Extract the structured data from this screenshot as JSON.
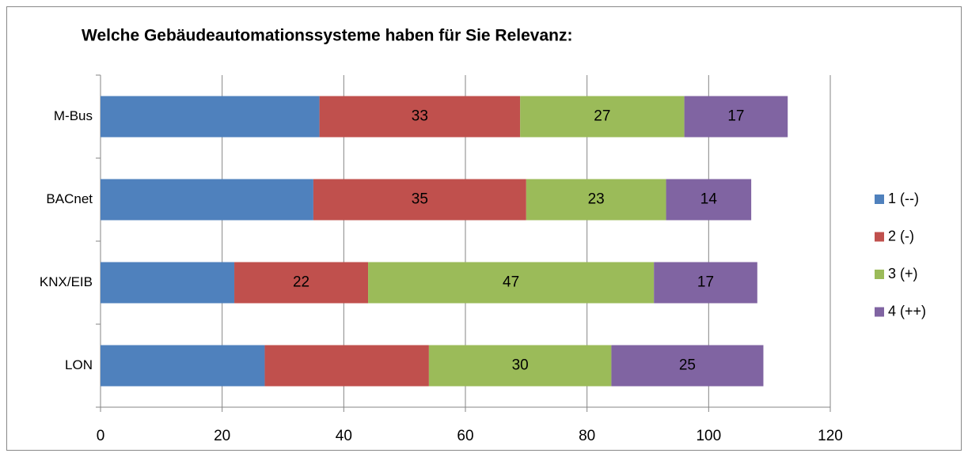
{
  "chart_data": {
    "type": "stacked-bar-horizontal",
    "title": "Welche Gebäudeautomationssysteme haben für Sie Relevanz:",
    "categories": [
      "M-Bus",
      "BACnet",
      "KNX/EIB",
      "LON"
    ],
    "series": [
      {
        "name": "1 (--)",
        "color": "#4f81bd",
        "values": [
          36,
          35,
          22,
          27
        ],
        "value_labels": [
          null,
          null,
          null,
          null
        ]
      },
      {
        "name": "2 (-)",
        "color": "#c0504d",
        "values": [
          33,
          35,
          22,
          27
        ],
        "value_labels": [
          33,
          35,
          22,
          null
        ]
      },
      {
        "name": "3 (+)",
        "color": "#9bbb59",
        "values": [
          27,
          23,
          47,
          30
        ],
        "value_labels": [
          27,
          23,
          47,
          30
        ]
      },
      {
        "name": "4 (++)",
        "color": "#8064a2",
        "values": [
          17,
          14,
          17,
          25
        ],
        "value_labels": [
          17,
          14,
          17,
          25
        ]
      }
    ],
    "xlim": [
      0,
      120
    ],
    "xticks": [
      0,
      20,
      40,
      60,
      80,
      100,
      120
    ],
    "grid": true,
    "legend": "right"
  }
}
